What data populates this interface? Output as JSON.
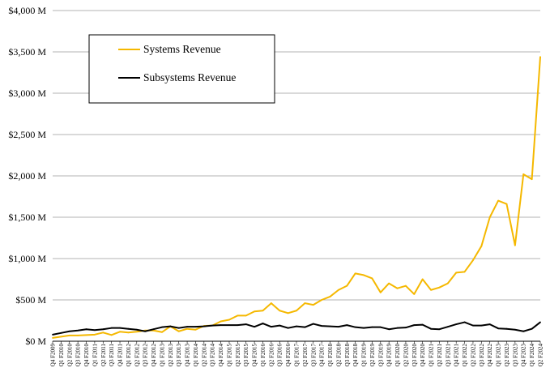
{
  "chart_data": {
    "type": "line",
    "title": "",
    "xlabel": "",
    "ylabel": "",
    "ylim": [
      0,
      4000
    ],
    "y_ticks": [
      0,
      500,
      1000,
      1500,
      2000,
      2500,
      3000,
      3500,
      4000
    ],
    "y_tick_labels": [
      "$0 M",
      "$500 M",
      "$1,000 M",
      "$1,500 M",
      "$2,000 M",
      "$2,500 M",
      "$3,000 M",
      "$3,500 M",
      "$4,000 M"
    ],
    "grid": "horizontal",
    "legend_position": "top-left",
    "categories": [
      "Q4 F2009",
      "Q1 F2010",
      "Q2 F2010",
      "Q3 F2010",
      "Q4 F2010",
      "Q1 F2011",
      "Q2 F2011",
      "Q3 F2011",
      "Q4 F2011",
      "Q1 F2012",
      "Q2 F2012",
      "Q3 F2012",
      "Q4 F2012",
      "Q1 F2013",
      "Q2 F2013",
      "Q3 F2013",
      "Q4 F2013",
      "Q1 F2014",
      "Q2 F2014",
      "Q3 F2014",
      "Q4 F2014",
      "Q1 F2015",
      "Q2 F2015",
      "Q3 F2015",
      "Q4 F2015",
      "Q1 F2016",
      "Q2 F2016",
      "Q3 F2016",
      "Q4 F2016",
      "Q1 F2017",
      "Q2 F2017",
      "Q3 F2017",
      "Q4 F2017",
      "Q1 F2018",
      "Q2 F2018",
      "Q3 F2018",
      "Q4 F2018",
      "Q1 F2019",
      "Q2 F2019",
      "Q3 F2019",
      "Q4 F2019",
      "Q1 F2020",
      "Q2 F2020",
      "Q3 F2020",
      "Q4 F2020",
      "Q1 F2021",
      "Q2 F2021",
      "Q3 F2021",
      "Q4 F2021",
      "Q1 F2022",
      "Q2 F2022",
      "Q3 F2022",
      "Q4 F2022",
      "Q1 F2023",
      "Q2 F2023",
      "Q3 F2023",
      "Q4 F2023",
      "Q1 F2024",
      "Q2 F2024"
    ],
    "series": [
      {
        "name": "Systems Revenue",
        "color": "#F5B800",
        "values": [
          40,
          55,
          70,
          70,
          75,
          80,
          105,
          75,
          115,
          105,
          115,
          130,
          130,
          110,
          180,
          120,
          150,
          140,
          185,
          190,
          240,
          260,
          310,
          310,
          360,
          370,
          460,
          370,
          340,
          370,
          460,
          440,
          500,
          540,
          620,
          670,
          820,
          800,
          760,
          590,
          700,
          640,
          670,
          570,
          750,
          620,
          650,
          700,
          830,
          840,
          980,
          1150,
          1500,
          1700,
          1660,
          1160,
          2020,
          1960,
          3440
        ]
      },
      {
        "name": "Subsystems Revenue",
        "color": "#000000",
        "values": [
          80,
          100,
          120,
          130,
          145,
          135,
          145,
          160,
          160,
          150,
          140,
          120,
          145,
          170,
          180,
          160,
          175,
          175,
          180,
          190,
          195,
          195,
          195,
          205,
          175,
          215,
          175,
          190,
          160,
          180,
          170,
          210,
          185,
          180,
          175,
          195,
          170,
          160,
          170,
          170,
          145,
          160,
          165,
          195,
          200,
          150,
          145,
          175,
          205,
          230,
          190,
          190,
          205,
          155,
          150,
          140,
          120,
          150,
          230
        ]
      }
    ]
  }
}
